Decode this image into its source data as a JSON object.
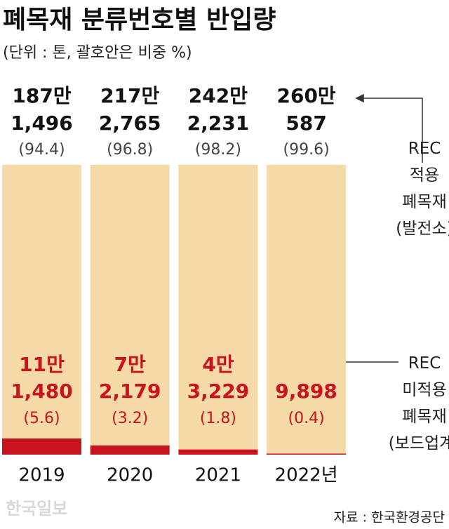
{
  "chart_data": {
    "type": "stacked_bar",
    "title": "폐목재 분류번호별 반입량",
    "subtitle": "(단위 : 톤, 괄호안은 비중 %)",
    "categories": [
      "2019",
      "2020",
      "2021",
      "2022년"
    ],
    "ylim": [
      0,
      100
    ],
    "series": [
      {
        "name": "REC 적용 폐목재 (발전소)",
        "color": "#f5d9a6",
        "values": [
          94.4,
          96.8,
          98.2,
          99.6
        ],
        "value_labels": [
          "(94.4)",
          "(96.8)",
          "(98.2)",
          "(99.6)"
        ],
        "tonnage": [
          1871496,
          2172765,
          2422231,
          2600587
        ],
        "tonnage_labels": [
          [
            "187만",
            "1,496"
          ],
          [
            "217만",
            "2,765"
          ],
          [
            "242만",
            "2,231"
          ],
          [
            "260만",
            "587"
          ]
        ]
      },
      {
        "name": "REC 미적용 폐목재 (보드업계)",
        "color": "#c8141e",
        "values": [
          5.6,
          3.2,
          1.8,
          0.4
        ],
        "value_labels": [
          "(5.6)",
          "(3.2)",
          "(1.8)",
          "(0.4)"
        ],
        "tonnage": [
          111480,
          72179,
          43229,
          9898
        ],
        "tonnage_labels": [
          [
            "11만",
            "1,480"
          ],
          [
            "7만",
            "2,179"
          ],
          [
            "4만",
            "3,229"
          ],
          [
            "9,898"
          ]
        ]
      }
    ],
    "source": "자료 : 한국환경공단",
    "watermark": "한국일보"
  }
}
